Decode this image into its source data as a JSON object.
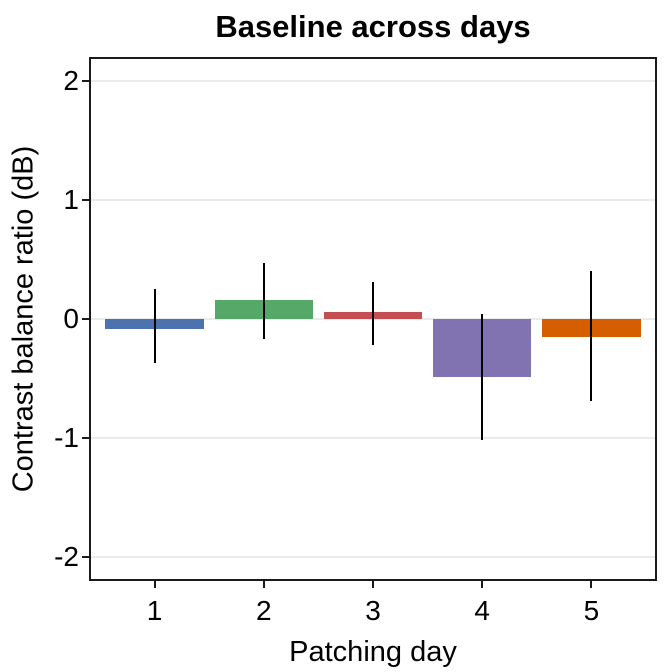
{
  "chart_data": {
    "type": "bar",
    "title": "Baseline across days",
    "xlabel": "Patching day",
    "ylabel": "Contrast balance ratio (dB)",
    "categories": [
      "1",
      "2",
      "3",
      "4",
      "5"
    ],
    "series": [
      {
        "name": "Contrast balance ratio",
        "values": [
          -0.08,
          0.16,
          0.06,
          -0.49,
          -0.15
        ],
        "error_low": [
          -0.37,
          -0.17,
          -0.22,
          -1.02,
          -0.69
        ],
        "error_high": [
          0.25,
          0.47,
          0.31,
          0.04,
          0.4
        ]
      }
    ],
    "bar_colors": [
      "#4C72B0",
      "#55A868",
      "#C44E52",
      "#8172B2",
      "#D55E00"
    ],
    "ylim": [
      -2.2,
      2.2
    ],
    "yticks": [
      2,
      1,
      0,
      -1,
      -2
    ],
    "bar_baseline": 0,
    "bar_width_fraction": 0.9,
    "grid": "horizontal major gridlines only, light gray, white background",
    "legend_position": "none"
  }
}
